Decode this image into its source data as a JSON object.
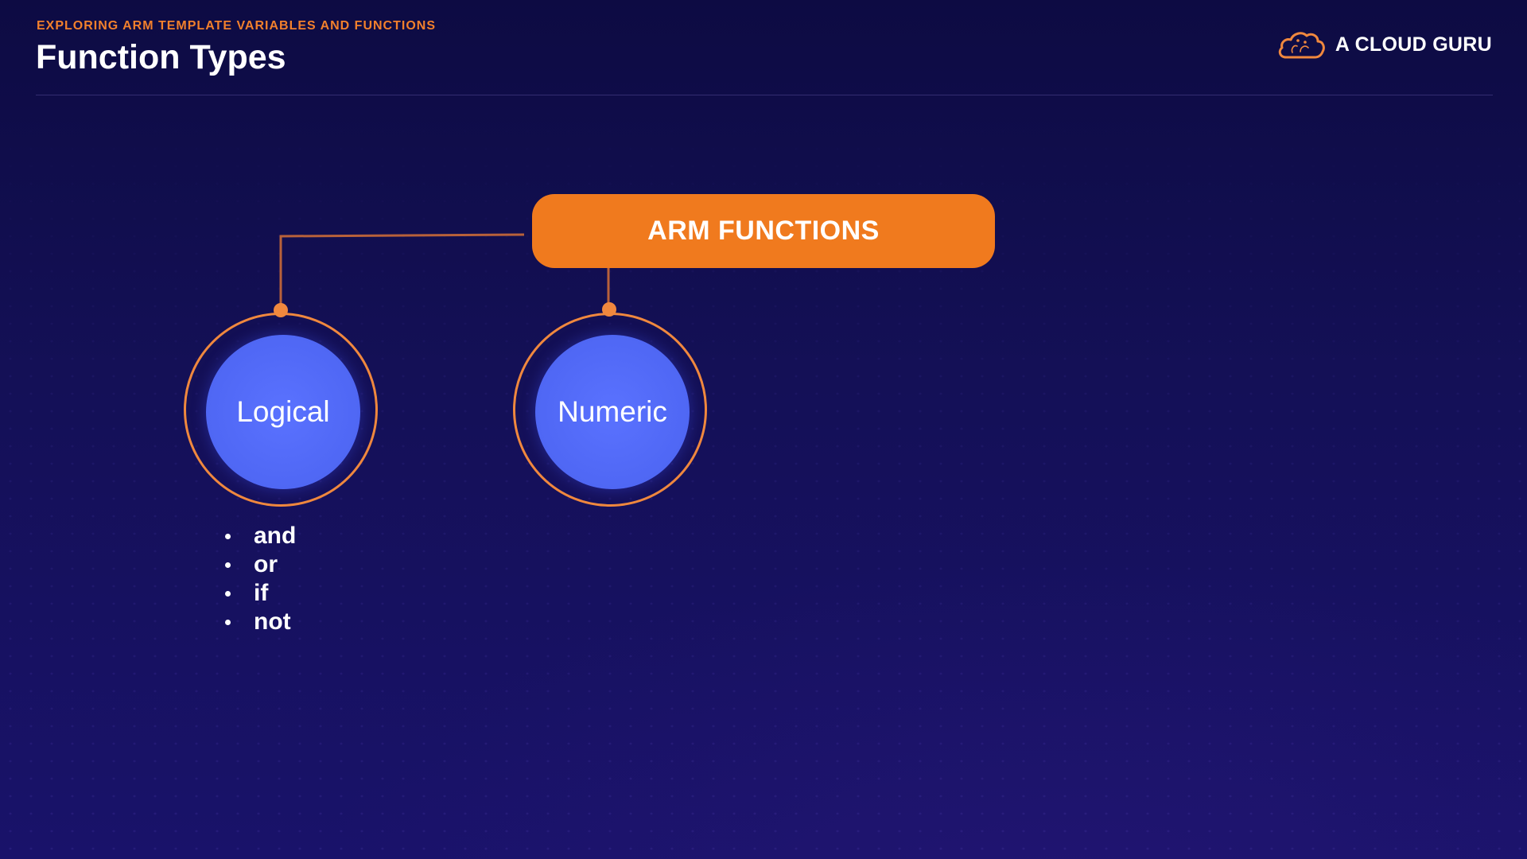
{
  "header": {
    "kicker": "EXPLORING ARM TEMPLATE VARIABLES AND FUNCTIONS",
    "title": "Function Types"
  },
  "brand": {
    "name": "A CLOUD GURU",
    "icon": "cloud-icon"
  },
  "diagram": {
    "root": {
      "label": "ARM FUNCTIONS"
    },
    "children": [
      {
        "label": "Logical",
        "items": [
          "and",
          "or",
          "if",
          "not"
        ]
      },
      {
        "label": "Numeric",
        "items": []
      }
    ]
  },
  "colors": {
    "background": "#141057",
    "accent_orange": "#f07a1e",
    "connector": "#b8613a",
    "node_blue": "#4f67f4"
  }
}
